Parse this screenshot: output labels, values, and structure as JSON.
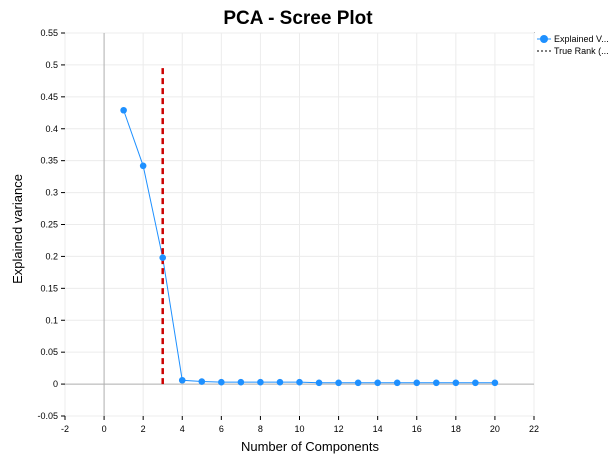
{
  "chart_data": {
    "type": "line",
    "title": "PCA - Scree Plot",
    "xlabel": "Number of Components",
    "ylabel": "Explained variance",
    "xlim": [
      -2,
      22
    ],
    "ylim": [
      -0.05,
      0.55
    ],
    "xticks": [
      -2,
      0,
      2,
      4,
      6,
      8,
      10,
      12,
      14,
      16,
      18,
      20,
      22
    ],
    "yticks": [
      -0.05,
      0,
      0.05,
      0.1,
      0.15,
      0.2,
      0.25,
      0.3,
      0.35,
      0.4,
      0.45,
      0.5,
      0.55
    ],
    "ytick_labels": [
      "-0.05",
      "0",
      "0.05",
      "0.1",
      "0.15",
      "0.2",
      "0.25",
      "0.3",
      "0.35",
      "0.4",
      "0.45",
      "0.5",
      "0.55"
    ],
    "grid": true,
    "legend_position": "top-right outside",
    "series": [
      {
        "name": "Explained V...",
        "kind": "line-markers",
        "color": "#1e90ff",
        "x": [
          1,
          2,
          3,
          4,
          5,
          6,
          7,
          8,
          9,
          10,
          11,
          12,
          13,
          14,
          15,
          16,
          17,
          18,
          19,
          20
        ],
        "y": [
          0.429,
          0.342,
          0.198,
          0.006,
          0.004,
          0.003,
          0.003,
          0.003,
          0.003,
          0.003,
          0.002,
          0.002,
          0.002,
          0.002,
          0.002,
          0.002,
          0.002,
          0.002,
          0.002,
          0.002
        ]
      },
      {
        "name": "True Rank (...",
        "kind": "vertical-dashed",
        "color": "#cc0000",
        "x": 3,
        "y_range": [
          0,
          0.5
        ]
      }
    ]
  }
}
